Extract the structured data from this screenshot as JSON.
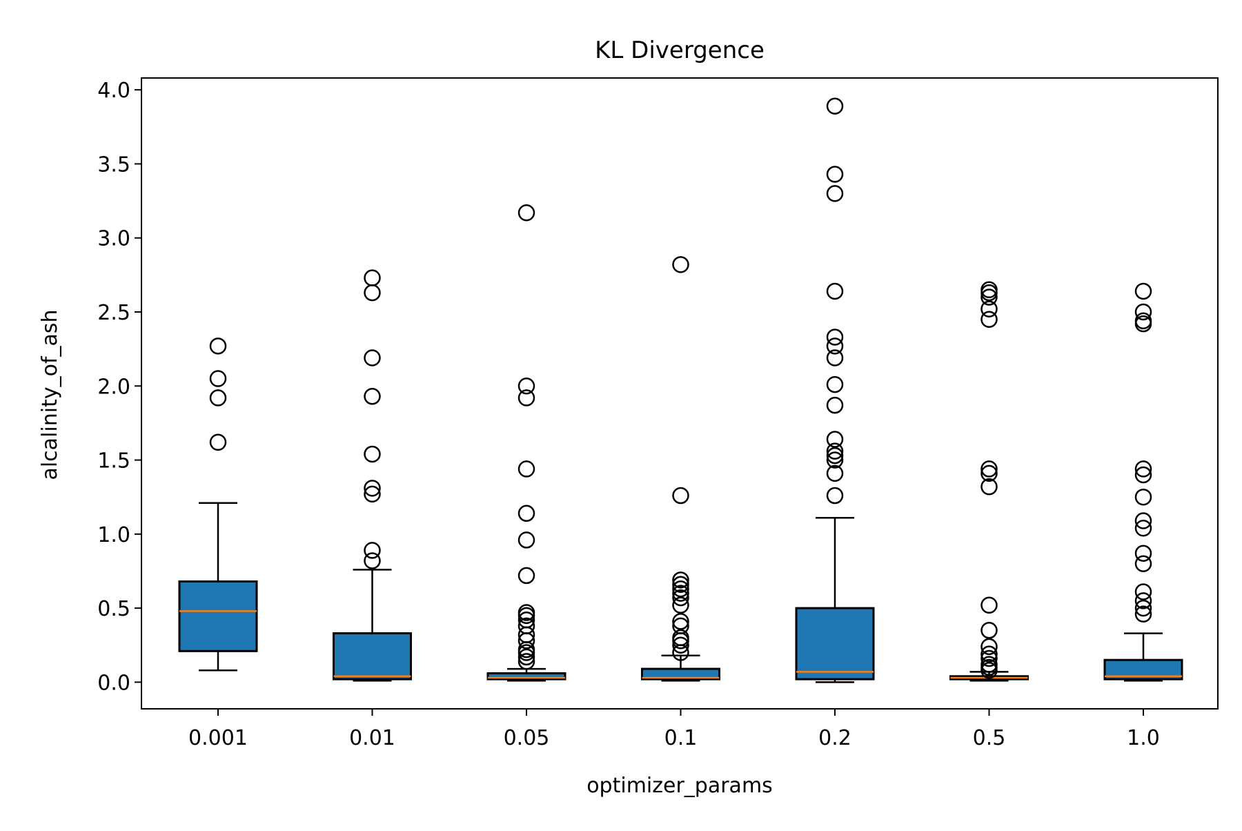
{
  "chart_data": {
    "type": "box",
    "title": "KL Divergence",
    "xlabel": "optimizer_params",
    "ylabel": "alcalinity_of_ash",
    "categories": [
      "0.001",
      "0.01",
      "0.05",
      "0.1",
      "0.2",
      "0.5",
      "1.0"
    ],
    "ylim": [
      -0.18,
      4.08
    ],
    "yticks": [
      0.0,
      0.5,
      1.0,
      1.5,
      2.0,
      2.5,
      3.0,
      3.5,
      4.0
    ],
    "ytick_labels": [
      "0.0",
      "0.5",
      "1.0",
      "1.5",
      "2.0",
      "2.5",
      "3.0",
      "3.5",
      "4.0"
    ],
    "grid": false,
    "box_color": "#1f77b4",
    "median_color": "#ff7f0e",
    "boxes": [
      {
        "category": "0.001",
        "whisker_low": 0.08,
        "q1": 0.21,
        "median": 0.48,
        "q3": 0.68,
        "whisker_high": 1.21,
        "outliers": [
          1.62,
          1.92,
          2.05,
          2.27
        ]
      },
      {
        "category": "0.01",
        "whisker_low": 0.01,
        "q1": 0.02,
        "median": 0.04,
        "q3": 0.33,
        "whisker_high": 0.76,
        "outliers": [
          0.82,
          0.89,
          1.27,
          1.31,
          1.54,
          1.93,
          2.19,
          2.63,
          2.73
        ]
      },
      {
        "category": "0.05",
        "whisker_low": 0.01,
        "q1": 0.02,
        "median": 0.03,
        "q3": 0.06,
        "whisker_high": 0.09,
        "outliers": [
          0.14,
          0.17,
          0.2,
          0.22,
          0.28,
          0.32,
          0.38,
          0.42,
          0.45,
          0.47,
          0.72,
          0.96,
          1.14,
          1.44,
          1.92,
          2.0,
          3.17
        ]
      },
      {
        "category": "0.1",
        "whisker_low": 0.01,
        "q1": 0.02,
        "median": 0.03,
        "q3": 0.09,
        "whisker_high": 0.18,
        "outliers": [
          0.2,
          0.25,
          0.28,
          0.3,
          0.38,
          0.41,
          0.52,
          0.57,
          0.6,
          0.63,
          0.66,
          0.69,
          1.26,
          2.82
        ]
      },
      {
        "category": "0.2",
        "whisker_low": 0.0,
        "q1": 0.02,
        "median": 0.07,
        "q3": 0.5,
        "whisker_high": 1.11,
        "outliers": [
          1.26,
          1.41,
          1.5,
          1.53,
          1.56,
          1.64,
          1.87,
          2.01,
          2.19,
          2.27,
          2.33,
          2.64,
          3.3,
          3.43,
          3.89
        ]
      },
      {
        "category": "0.5",
        "whisker_low": 0.01,
        "q1": 0.02,
        "median": 0.03,
        "q3": 0.04,
        "whisker_high": 0.07,
        "outliers": [
          0.08,
          0.1,
          0.12,
          0.16,
          0.19,
          0.24,
          0.35,
          0.52,
          1.32,
          1.41,
          1.44,
          2.45,
          2.52,
          2.6,
          2.63,
          2.65
        ]
      },
      {
        "category": "1.0",
        "whisker_low": 0.01,
        "q1": 0.02,
        "median": 0.04,
        "q3": 0.15,
        "whisker_high": 0.33,
        "outliers": [
          0.46,
          0.5,
          0.55,
          0.61,
          0.8,
          0.87,
          1.04,
          1.09,
          1.25,
          1.4,
          1.44,
          2.42,
          2.44,
          2.5,
          2.64
        ]
      }
    ]
  }
}
